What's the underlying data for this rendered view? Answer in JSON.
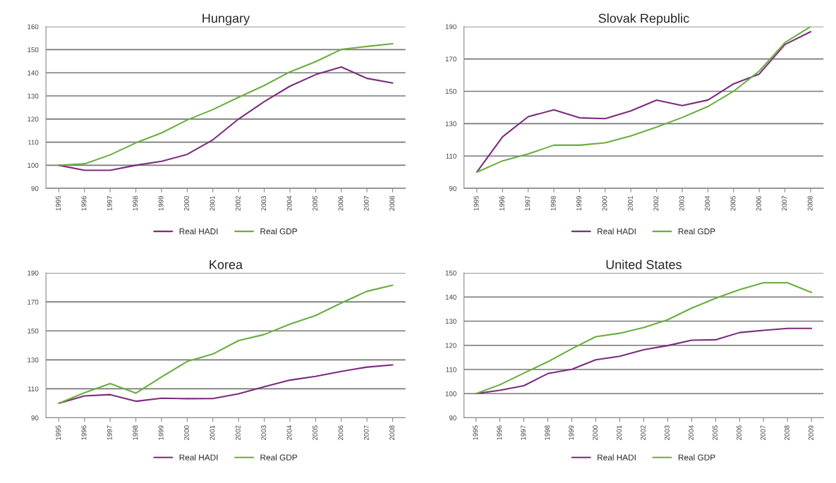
{
  "chart_data": [
    {
      "type": "line",
      "title": "Hungary",
      "categories": [
        "1995",
        "1996",
        "1997",
        "1998",
        "1999",
        "2000",
        "2001",
        "2002",
        "2003",
        "2004",
        "2005",
        "2006",
        "2007",
        "2008"
      ],
      "ylim": [
        90,
        160
      ],
      "yticks": [
        90,
        100,
        110,
        120,
        130,
        140,
        150,
        160
      ],
      "grid": "y",
      "legend": "bottom",
      "series": [
        {
          "name": "Real HADI",
          "color": "#7b2c7c",
          "values": [
            100,
            97.8,
            97.8,
            100,
            101.7,
            104.7,
            111,
            120,
            127.5,
            134.2,
            139.2,
            142.5,
            137.6,
            135.6
          ]
        },
        {
          "name": "Real GDP",
          "color": "#6aad3f",
          "values": [
            100,
            100.6,
            104.5,
            109.7,
            114,
            119.6,
            124.1,
            129.4,
            134.5,
            140.4,
            144.8,
            150.1,
            151.4,
            152.6
          ]
        }
      ]
    },
    {
      "type": "line",
      "title": "Slovak Republic",
      "categories": [
        "1995",
        "1996",
        "1997",
        "1998",
        "1999",
        "2000",
        "2001",
        "2002",
        "2003",
        "2004",
        "2005",
        "2006",
        "2007",
        "2008"
      ],
      "ylim": [
        90,
        190
      ],
      "yticks": [
        90,
        110,
        130,
        150,
        170,
        190
      ],
      "grid": "y",
      "legend": "bottom",
      "series": [
        {
          "name": "Real HADI",
          "color": "#7b2c7c",
          "values": [
            100,
            121.8,
            134.3,
            138.5,
            133.6,
            133.1,
            137.9,
            144.5,
            141.2,
            144.6,
            154.6,
            160.7,
            178.9,
            186.8
          ]
        },
        {
          "name": "Real GDP",
          "color": "#6aad3f",
          "values": [
            100,
            107,
            111.3,
            116.7,
            116.7,
            118.2,
            122.4,
            127.9,
            133.8,
            140.6,
            150,
            162.5,
            180.1,
            190
          ]
        }
      ]
    },
    {
      "type": "line",
      "title": "Korea",
      "categories": [
        "1995",
        "1996",
        "1997",
        "1998",
        "1999",
        "2000",
        "2001",
        "2002",
        "2003",
        "2004",
        "2005",
        "2006",
        "2007",
        "2008"
      ],
      "ylim": [
        90,
        190
      ],
      "yticks": [
        90,
        110,
        130,
        150,
        170,
        190
      ],
      "grid": "y",
      "legend": "bottom",
      "series": [
        {
          "name": "Real HADI",
          "color": "#7b2c7c",
          "values": [
            100,
            105.1,
            106,
            101.4,
            103.5,
            103.2,
            103.3,
            106.6,
            111.4,
            116,
            118.6,
            122,
            125,
            126.5
          ]
        },
        {
          "name": "Real GDP",
          "color": "#6aad3f",
          "values": [
            100,
            107.3,
            113.6,
            107,
            118.2,
            128.9,
            134,
            143.3,
            147.5,
            154.6,
            160.6,
            169.2,
            177.3,
            181.5
          ]
        }
      ]
    },
    {
      "type": "line",
      "title": "United States",
      "categories": [
        "1995",
        "1996",
        "1997",
        "1998",
        "1999",
        "2000",
        "2001",
        "2002",
        "2003",
        "2004",
        "2005",
        "2006",
        "2007",
        "2008",
        "2009"
      ],
      "ylim": [
        90,
        150
      ],
      "yticks": [
        90,
        100,
        110,
        120,
        130,
        140,
        150
      ],
      "grid": "y",
      "legend": "bottom",
      "series": [
        {
          "name": "Real HADI",
          "color": "#7b2c7c",
          "values": [
            100,
            101.4,
            103.3,
            108.3,
            110.1,
            114,
            115.5,
            118.2,
            119.9,
            122.1,
            122.3,
            125.3,
            126.2,
            127,
            127
          ]
        },
        {
          "name": "Real GDP",
          "color": "#6aad3f",
          "values": [
            100,
            103.7,
            108.5,
            113.2,
            118.6,
            123.6,
            125,
            127.4,
            130.6,
            135.4,
            139.5,
            143.1,
            145.9,
            145.9,
            141.9
          ]
        }
      ]
    }
  ]
}
